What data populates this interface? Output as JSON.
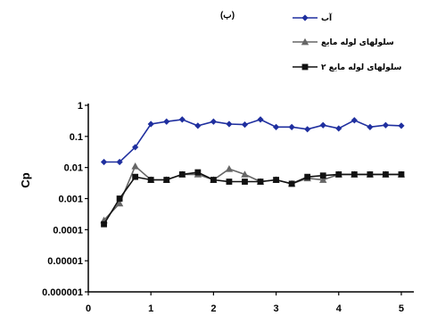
{
  "chart_data": {
    "type": "line",
    "panel_label": "(ب)",
    "ylabel": "Cp",
    "x_ticks": [
      "0",
      "1",
      "2",
      "3",
      "4",
      "5"
    ],
    "y_ticks": [
      "1",
      "0.1",
      "0.01",
      "0.001",
      "0.0001",
      "0.00001",
      "0.000001"
    ],
    "xlim": [
      0,
      5.2
    ],
    "ylim": [
      1e-06,
      1
    ],
    "y_scale": "log",
    "grid": false,
    "legend_position": "top-right",
    "x": [
      0.25,
      0.5,
      0.75,
      1.0,
      1.25,
      1.5,
      1.75,
      2.0,
      2.25,
      2.5,
      2.75,
      3.0,
      3.25,
      3.5,
      3.75,
      4.0,
      4.25,
      4.5,
      4.75,
      5.0
    ],
    "series": [
      {
        "name": "آب",
        "color": "#1f2f9f",
        "marker": "diamond",
        "values": [
          0.015,
          0.015,
          0.045,
          0.25,
          0.3,
          0.35,
          0.22,
          0.3,
          0.25,
          0.24,
          0.35,
          0.2,
          0.2,
          0.17,
          0.23,
          0.18,
          0.33,
          0.2,
          0.23,
          0.22
        ]
      },
      {
        "name": "سلولهای لوله مایع",
        "color": "#666666",
        "marker": "triangle",
        "values": [
          0.0002,
          0.0007,
          0.011,
          0.004,
          0.004,
          0.006,
          0.006,
          0.004,
          0.009,
          0.006,
          0.0035,
          0.004,
          0.003,
          0.0045,
          0.004,
          0.006,
          0.006,
          0.006,
          0.006,
          0.006
        ]
      },
      {
        "name": "سلولهای لوله مایع ۲",
        "color": "#111111",
        "marker": "square",
        "values": [
          0.00015,
          0.001,
          0.005,
          0.004,
          0.004,
          0.006,
          0.007,
          0.004,
          0.0035,
          0.0035,
          0.0035,
          0.004,
          0.003,
          0.005,
          0.0055,
          0.006,
          0.006,
          0.006,
          0.006,
          0.006
        ]
      }
    ]
  }
}
